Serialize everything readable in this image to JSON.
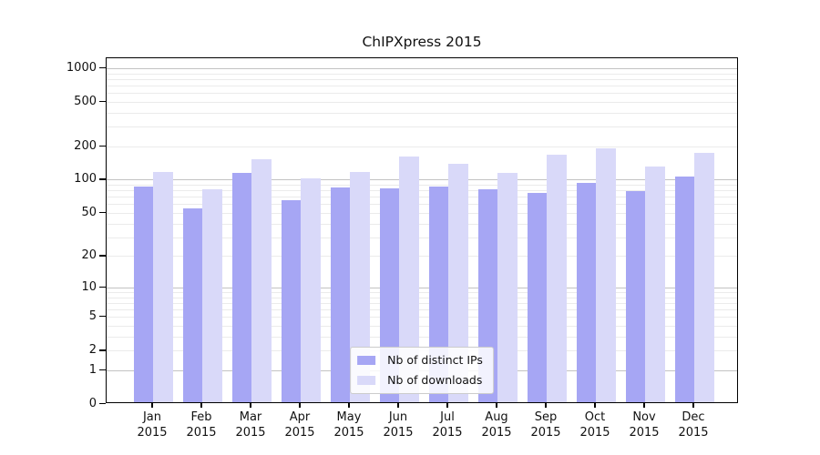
{
  "chart_data": {
    "type": "bar",
    "title": "ChIPXpress 2015",
    "categories": [
      "Jan 2015",
      "Feb 2015",
      "Mar 2015",
      "Apr 2015",
      "May 2015",
      "Jun 2015",
      "Jul 2015",
      "Aug 2015",
      "Sep 2015",
      "Oct 2015",
      "Nov 2015",
      "Dec 2015"
    ],
    "series": [
      {
        "name": "Nb of distinct IPs",
        "color": "#a6a6f4",
        "values": [
          84,
          53,
          112,
          63,
          83,
          81,
          85,
          79,
          74,
          91,
          76,
          104
        ]
      },
      {
        "name": "Nb of downloads",
        "color": "#d9d9f9",
        "values": [
          115,
          80,
          150,
          100,
          115,
          158,
          135,
          112,
          164,
          187,
          128,
          168
        ]
      }
    ],
    "y_axis": {
      "scale": "log10(1+y)",
      "tick_labels": [
        0,
        1,
        2,
        5,
        10,
        20,
        50,
        100,
        200,
        500,
        1000
      ],
      "major_gridlines": [
        1,
        10,
        100,
        1000
      ],
      "minor_gridline_decades": [
        1,
        10,
        100
      ],
      "ylim": [
        0,
        1239
      ],
      "grid": true
    },
    "x_axis": {
      "tick_label_lines": 2
    },
    "legend": {
      "position": "lower center"
    },
    "colors": {
      "grid_major": "#c3c3c3",
      "grid_minor": "#ebebeb",
      "axis_spine": "#000000",
      "background": "#ffffff"
    }
  }
}
